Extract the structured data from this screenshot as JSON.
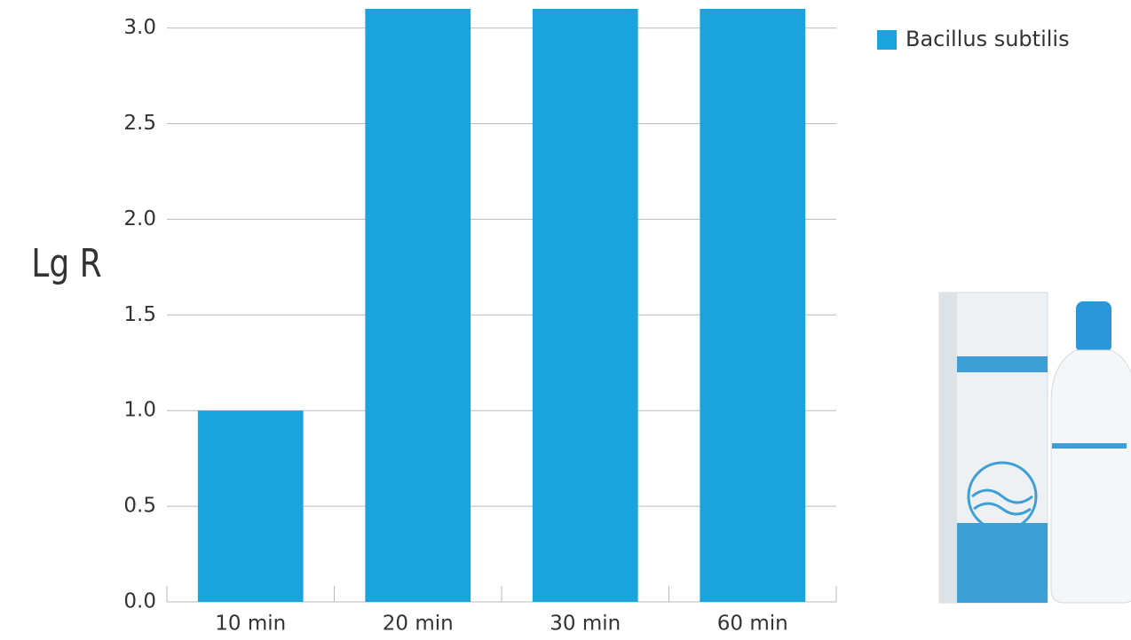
{
  "chart_data": {
    "type": "bar",
    "y_label": "Lg R",
    "categories": [
      "10 min",
      "20 min",
      "30 min",
      "60 min"
    ],
    "series": [
      {
        "name": "Bacillus subtilis",
        "color": "#1aa3dc",
        "values": [
          1.0,
          3.1,
          3.1,
          3.1
        ]
      }
    ],
    "ylim": [
      0,
      3.1
    ],
    "yticks": [
      {
        "value": 0,
        "label": "0.0"
      },
      0.5,
      {
        "value": 1,
        "label": "1.0"
      },
      1.5,
      {
        "value": 2,
        "label": "2.0"
      },
      2.5,
      {
        "value": 3,
        "label": "3.0"
      }
    ],
    "grid": true,
    "legend": "top-right"
  }
}
